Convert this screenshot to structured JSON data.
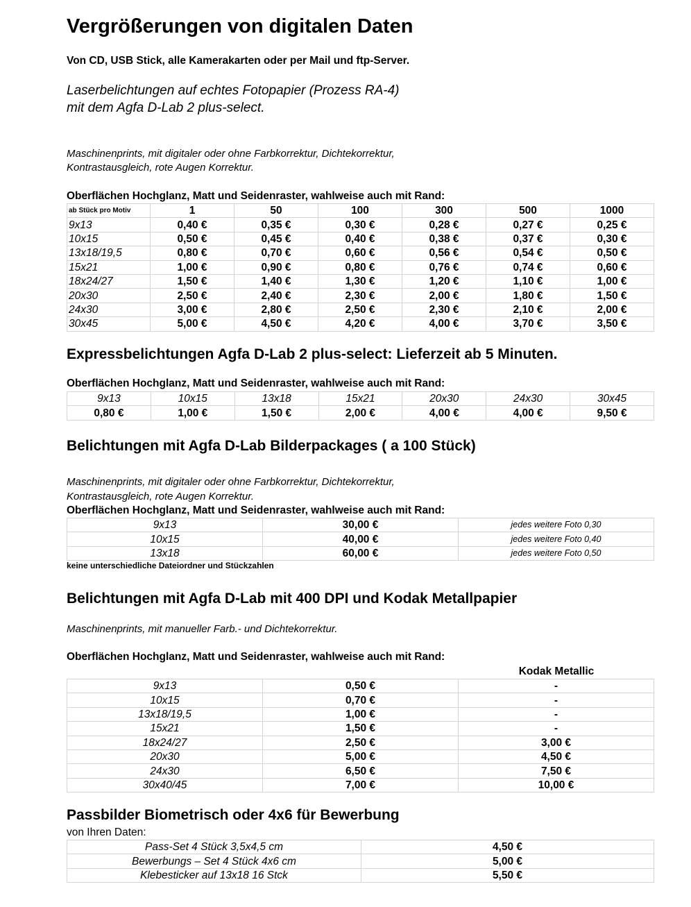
{
  "title": "Vergrößerungen von digitalen Daten",
  "subtitle": "Von CD, USB Stick, alle Kamerakarten oder per Mail und ftp-Server.",
  "laser_line1": "Laserbelichtungen auf echtes Fotopapier (Prozess RA-4)",
  "laser_line2": "mit dem Agfa D-Lab 2 plus-select.",
  "machine_line1": "Maschinenprints, mit digitaler oder ohne Farbkorrektur, Dichtekorrektur,",
  "machine_line2": "Kontrastausgleich, rote Augen Korrektur.",
  "surface_heading": "Oberflächen Hochglanz, Matt und Seidenraster, wahlweise auch mit Rand:",
  "table1": {
    "header": [
      "ab Stück pro Motiv",
      "1",
      "50",
      "100",
      "300",
      "500",
      "1000"
    ],
    "rows": [
      [
        "9x13",
        "0,40 €",
        "0,35 €",
        "0,30 €",
        "0,28 €",
        "0,27 €",
        "0,25 €"
      ],
      [
        "10x15",
        "0,50 €",
        "0,45 €",
        "0,40 €",
        "0,38 €",
        "0,37 €",
        "0,30 €"
      ],
      [
        "13x18/19,5",
        "0,80 €",
        "0,70 €",
        "0,60 €",
        "0,56 €",
        "0,54 €",
        "0,50 €"
      ],
      [
        "15x21",
        "1,00 €",
        "0,90 €",
        "0,80 €",
        "0,76 €",
        "0,74 €",
        "0,60 €"
      ],
      [
        "18x24/27",
        "1,50 €",
        "1,40 €",
        "1,30 €",
        "1,20 €",
        "1,10 €",
        "1,00 €"
      ],
      [
        "20x30",
        "2,50 €",
        "2,40 €",
        "2,30 €",
        "2,00 €",
        "1,80 €",
        "1,50 €"
      ],
      [
        "24x30",
        "3,00 €",
        "2,80 €",
        "2,50 €",
        "2,30 €",
        "2,10 €",
        "2,00 €"
      ],
      [
        "30x45",
        "5,00 €",
        "4,50 €",
        "4,20 €",
        "4,00 €",
        "3,70 €",
        "3,50 €"
      ]
    ]
  },
  "express_heading": "Expressbelichtungen Agfa D-Lab 2 plus-select: Lieferzeit ab 5 Minuten.",
  "express_table": {
    "sizes": [
      "9x13",
      "10x15",
      "13x18",
      "15x21",
      "20x30",
      "24x30",
      "30x45"
    ],
    "prices": [
      "0,80 €",
      "1,00 €",
      "1,50 €",
      "2,00 €",
      "4,00 €",
      "4,00 €",
      "9,50 €"
    ]
  },
  "package_heading": "Belichtungen mit Agfa D-Lab Bilderpackages ( a 100 Stück)",
  "package_table": [
    [
      "9x13",
      "30,00 €",
      "jedes weitere Foto 0,30"
    ],
    [
      "10x15",
      "40,00 €",
      "jedes weitere Foto 0,40"
    ],
    [
      "13x18",
      "60,00 €",
      "jedes weitere Foto 0,50"
    ]
  ],
  "package_note": "keine unterschiedliche Dateiordner und Stückzahlen",
  "metal_heading": "Belichtungen mit Agfa D-Lab mit 400 DPI und Kodak Metallpapier",
  "metal_intro": "Maschinenprints, mit manueller Farb.- und Dichtekorrektur.",
  "metal_col_header": "Kodak Metallic",
  "metal_table": [
    [
      "9x13",
      "0,50 €",
      "-"
    ],
    [
      "10x15",
      "0,70 €",
      "-"
    ],
    [
      "13x18/19,5",
      "1,00 €",
      "-"
    ],
    [
      "15x21",
      "1,50 €",
      "-"
    ],
    [
      "18x24/27",
      "2,50 €",
      "3,00 €"
    ],
    [
      "20x30",
      "5,00 €",
      "4,50 €"
    ],
    [
      "24x30",
      "6,50 €",
      "7,50 €"
    ],
    [
      "30x40/45",
      "7,00 €",
      "10,00 €"
    ]
  ],
  "pass_heading": "Passbilder Biometrisch oder 4x6 für Bewerbung",
  "pass_sub": "von Ihren Daten:",
  "pass_table": [
    [
      "Pass-Set 4 Stück 3,5x4,5 cm",
      "4,50 €"
    ],
    [
      "Bewerbungs – Set 4 Stück 4x6 cm",
      "5,00 €"
    ],
    [
      "Klebesticker auf 13x18 16 Stck",
      "5,50 €"
    ]
  ]
}
